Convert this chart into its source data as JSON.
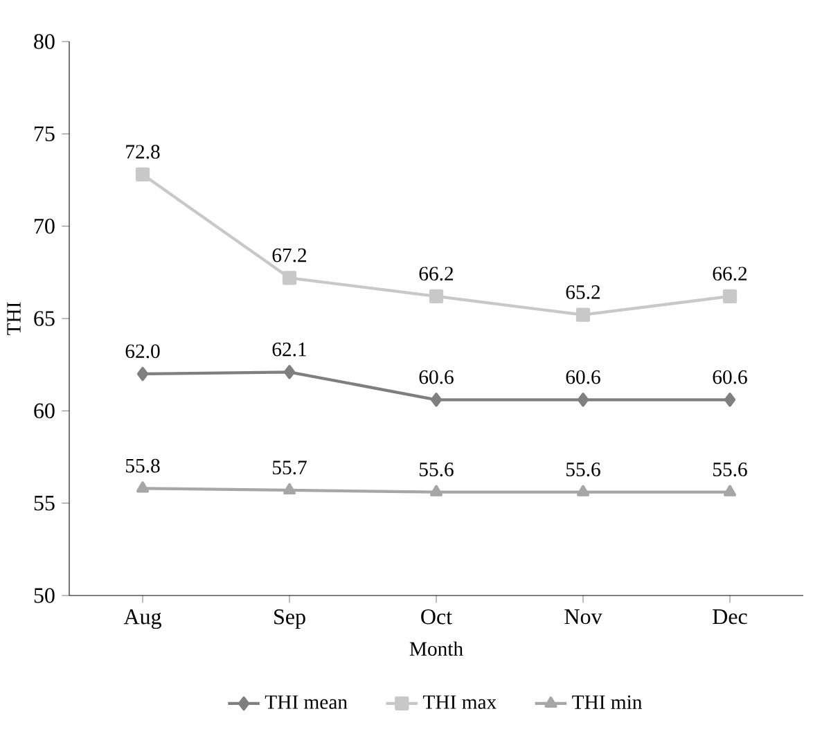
{
  "chart_data": {
    "type": "line",
    "xlabel": "Month",
    "ylabel": "THI",
    "categories": [
      "Aug",
      "Sep",
      "Oct",
      "Nov",
      "Dec"
    ],
    "ylim": [
      50,
      80
    ],
    "yticks": [
      50,
      55,
      60,
      65,
      70,
      75,
      80
    ],
    "legend": "bottom",
    "grid": false,
    "line_style": "solid",
    "series": [
      {
        "name": "THI mean",
        "color": "#7f7f7f",
        "marker": "diamond",
        "values": [
          62.0,
          62.1,
          60.6,
          60.6,
          60.6
        ],
        "value_labels": [
          "62.0",
          "62.1",
          "60.6",
          "60.6",
          "60.6"
        ]
      },
      {
        "name": "THI max",
        "color": "#c8c8c8",
        "marker": "square",
        "values": [
          72.8,
          67.2,
          66.2,
          65.2,
          66.2
        ],
        "value_labels": [
          "72.8",
          "67.2",
          "66.2",
          "65.2",
          "66.2"
        ]
      },
      {
        "name": "THI min",
        "color": "#a6a6a6",
        "marker": "triangle",
        "values": [
          55.8,
          55.7,
          55.6,
          55.6,
          55.6
        ],
        "value_labels": [
          "55.8",
          "55.7",
          "55.6",
          "55.6",
          "55.6"
        ]
      }
    ]
  }
}
